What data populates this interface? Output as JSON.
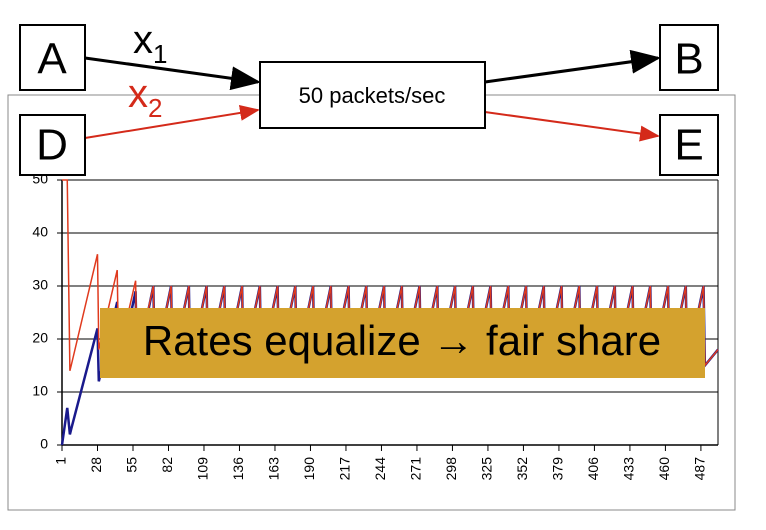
{
  "chart_data": {
    "type": "line",
    "x": [
      1,
      5,
      7,
      8,
      28,
      29,
      43,
      44,
      57,
      58,
      70.5,
      71.5,
      84,
      85,
      97.5,
      98.5,
      111,
      112,
      124.5,
      125.5,
      138,
      139,
      151.5,
      152.5,
      165,
      166,
      178.5,
      179.5,
      192,
      193,
      205.5,
      206.5,
      219,
      220,
      232.5,
      233.5,
      246,
      247,
      259.5,
      260.5,
      273,
      274,
      286.5,
      287.5,
      300,
      301,
      313.5,
      314.5,
      327,
      328,
      340.5,
      341.5,
      354,
      355,
      367.5,
      368.5,
      381,
      382,
      394.5,
      395.5,
      408,
      409,
      421.5,
      422.5,
      435,
      436,
      448.5,
      449.5,
      462,
      463,
      475.5,
      476.5,
      489,
      490,
      500
    ],
    "series": [
      {
        "color": "#1a1a8c",
        "values": [
          0,
          7,
          2,
          3,
          22,
          12,
          27,
          14,
          29,
          15,
          30,
          15,
          30,
          15,
          30,
          15,
          30,
          15,
          30,
          15,
          30,
          15,
          30,
          15,
          30,
          15,
          30,
          15,
          30,
          15,
          30,
          15,
          30,
          15,
          30,
          15,
          30,
          15,
          30,
          15,
          30,
          15,
          30,
          15,
          30,
          15,
          30,
          15,
          30,
          15,
          30,
          15,
          30,
          15,
          30,
          15,
          30,
          15,
          30,
          15,
          30,
          15,
          30,
          15,
          30,
          15,
          30,
          15,
          30,
          15,
          30,
          15,
          30,
          15,
          18
        ]
      },
      {
        "color": "#e03a1e",
        "values": [
          50,
          50,
          14,
          15,
          36,
          18,
          33,
          17,
          31,
          16,
          30,
          15,
          30,
          15,
          30,
          15,
          30,
          15,
          30,
          15,
          30,
          15,
          30,
          15,
          30,
          15,
          30,
          15,
          30,
          15,
          30,
          15,
          30,
          15,
          30,
          15,
          30,
          15,
          30,
          15,
          30,
          15,
          30,
          15,
          30,
          15,
          30,
          15,
          30,
          15,
          30,
          15,
          30,
          15,
          30,
          15,
          30,
          15,
          30,
          15,
          30,
          15,
          30,
          15,
          30,
          15,
          30,
          15,
          30,
          15,
          30,
          15,
          30,
          15,
          18
        ]
      }
    ],
    "xlim": [
      1,
      500
    ],
    "xticks": [
      1,
      28,
      55,
      82,
      109,
      136,
      163,
      190,
      217,
      244,
      271,
      298,
      325,
      352,
      379,
      406,
      433,
      460,
      487
    ],
    "ylim": [
      0,
      50
    ],
    "yticks": [
      0,
      10,
      20,
      30,
      40,
      50
    ],
    "grid": true
  },
  "diagram": {
    "nodes": [
      "A",
      "B",
      "D",
      "E",
      "50 packets/sec"
    ],
    "flow_1": {
      "text": "x",
      "sub": "1"
    },
    "flow_2": {
      "text": "x",
      "sub": "2"
    },
    "banner": "Rates equalize → fair share"
  }
}
